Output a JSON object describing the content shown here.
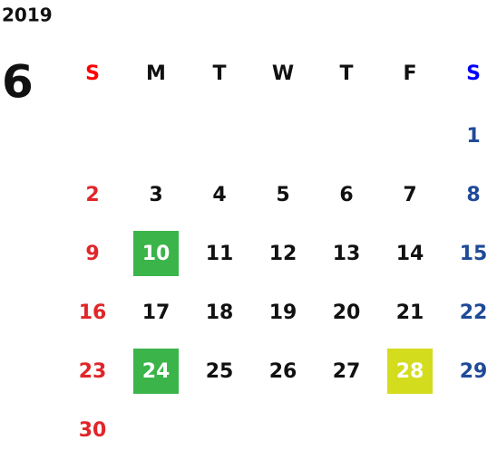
{
  "year": "2019",
  "month": "6",
  "weekdays": [
    {
      "label": "S",
      "color": "#ff0000",
      "day_color": "#e0262a"
    },
    {
      "label": "M",
      "color": "#111111",
      "day_color": "#111111"
    },
    {
      "label": "T",
      "color": "#111111",
      "day_color": "#111111"
    },
    {
      "label": "W",
      "color": "#111111",
      "day_color": "#111111"
    },
    {
      "label": "T",
      "color": "#111111",
      "day_color": "#111111"
    },
    {
      "label": "F",
      "color": "#111111",
      "day_color": "#111111"
    },
    {
      "label": "S",
      "color": "#0000ff",
      "day_color": "#1f4a98"
    }
  ],
  "weeks": [
    [
      null,
      null,
      null,
      null,
      null,
      null,
      1
    ],
    [
      2,
      3,
      4,
      5,
      6,
      7,
      8
    ],
    [
      9,
      {
        "day": 10,
        "highlight": "#3bb44a"
      },
      11,
      12,
      13,
      14,
      15
    ],
    [
      16,
      17,
      18,
      19,
      20,
      21,
      22
    ],
    [
      23,
      {
        "day": 24,
        "highlight": "#3bb44a"
      },
      25,
      26,
      27,
      {
        "day": 28,
        "highlight": "#d4dc1e"
      },
      29
    ],
    [
      30
    ]
  ]
}
